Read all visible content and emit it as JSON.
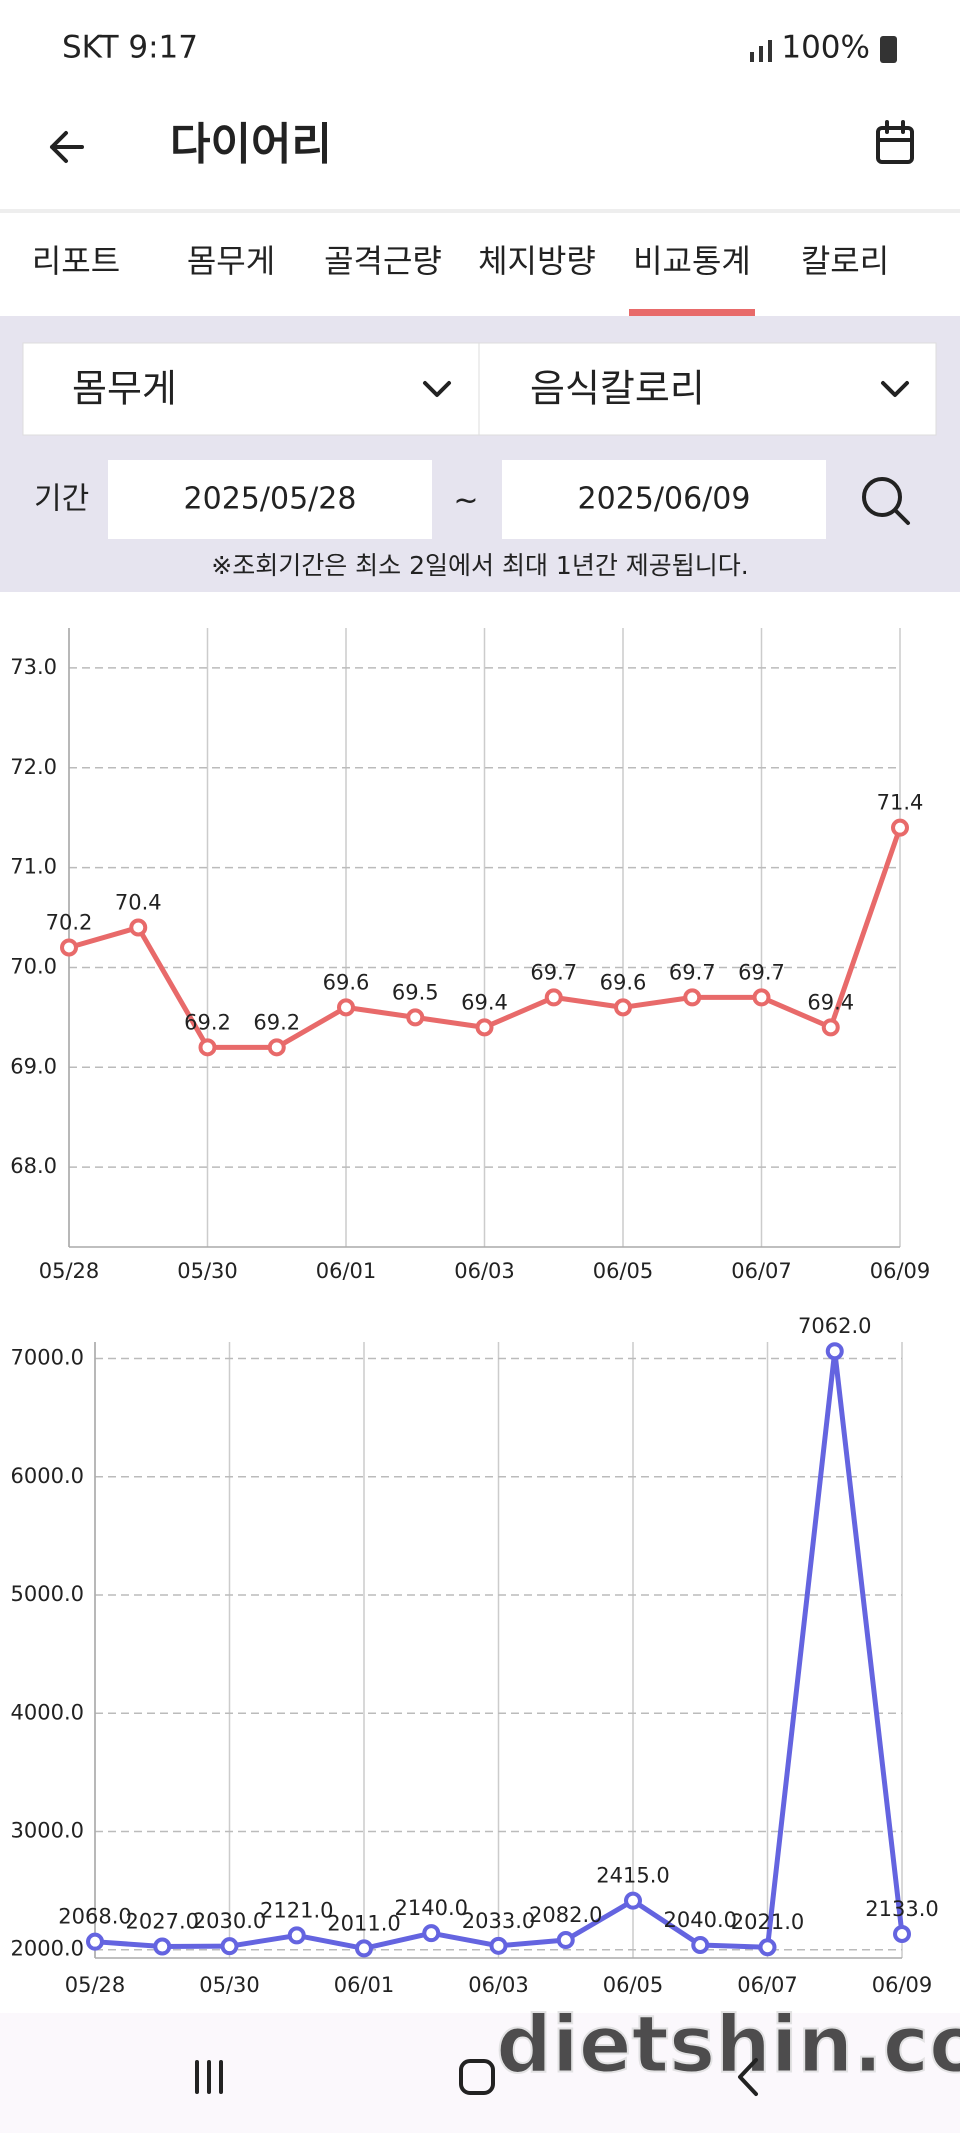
{
  "status_bar": {
    "carrier_time": "SKT 9:17",
    "battery": "100%"
  },
  "header": {
    "title": "다이어리"
  },
  "tabs": {
    "items": [
      "리포트",
      "몸무게",
      "골격근량",
      "체지방량",
      "비교통계",
      "칼로리"
    ],
    "active": 4
  },
  "filters": {
    "left": "몸무게",
    "right": "음식칼로리",
    "period_label": "기간",
    "start": "2025/05/28",
    "separator": "~",
    "end": "2025/06/09",
    "notice": "※조회기간은 최소 2일에서 최대 1년간 제공됩니다."
  },
  "watermark": "dietshin.com",
  "chart_data": [
    {
      "type": "line",
      "color": "#e86a6a",
      "grid": true,
      "categories": [
        "05/28",
        null,
        "05/30",
        null,
        "06/01",
        null,
        "06/03",
        null,
        "06/05",
        null,
        "06/07",
        null,
        "06/09"
      ],
      "values": [
        70.2,
        70.4,
        69.2,
        69.2,
        69.6,
        69.5,
        69.4,
        69.7,
        69.6,
        69.7,
        69.7,
        69.4,
        71.4
      ],
      "ylim": [
        67.2,
        73.4
      ],
      "yticks": [
        {
          "value": 68,
          "label": "68.0"
        },
        {
          "value": 69,
          "label": "69.0"
        },
        {
          "value": 70,
          "label": "70.0"
        },
        {
          "value": 71,
          "label": "71.0"
        },
        {
          "value": 72,
          "label": "72.0"
        },
        {
          "value": 73,
          "label": "73.0"
        }
      ]
    },
    {
      "type": "line",
      "color": "#6464e0",
      "grid": true,
      "categories": [
        "05/28",
        null,
        "05/30",
        null,
        "06/01",
        null,
        "06/03",
        null,
        "06/05",
        null,
        "06/07",
        null,
        "06/09"
      ],
      "values": [
        2068,
        2027,
        2030,
        2121,
        2011,
        2140,
        2033,
        2082,
        2415,
        2040,
        2021,
        7062,
        2133
      ],
      "value_labels": [
        "2068.0",
        "2027.0",
        "2030.0",
        "2121.0",
        "2011.0",
        "2140.0",
        "2033.0",
        "2082.0",
        "2415.0",
        "2040.0",
        "2021.0",
        "7062.0",
        "2133.0"
      ],
      "ylim": [
        1930,
        7140
      ],
      "yticks": [
        {
          "value": 2000,
          "label": "2000.0"
        },
        {
          "value": 3000,
          "label": "3000.0"
        },
        {
          "value": 4000,
          "label": "4000.0"
        },
        {
          "value": 5000,
          "label": "5000.0"
        },
        {
          "value": 6000,
          "label": "6000.0"
        },
        {
          "value": 7000,
          "label": "7000.0"
        }
      ]
    }
  ]
}
